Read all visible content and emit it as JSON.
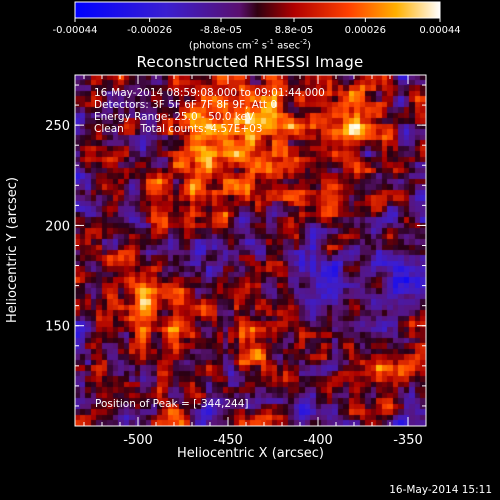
{
  "colorbar": {
    "ticks": [
      "-0.00044",
      "-0.00026",
      "-8.8e-05",
      "8.8e-05",
      "0.00026",
      "0.00044"
    ],
    "tick_values": [
      -0.00044,
      -0.00026,
      -8.8e-05,
      8.8e-05,
      0.00026,
      0.00044
    ],
    "units_prefix": "(photons cm",
    "units_exp1": "-2",
    "units_mid1": " s",
    "units_exp2": "-1",
    "units_mid2": " asec",
    "units_exp3": "-2",
    "units_suffix": ")"
  },
  "header": {
    "title": "Reconstructed RHESSI Image"
  },
  "info": {
    "line1": "16-May-2014 08:59:08.000 to 09:01:44.000",
    "line2": "Detectors: 3F 5F 6F 7F 8F 9F, Att 0",
    "line3": "Energy Range: 25.0 - 50.0 keV",
    "line4": "Clean     Total counts: 4.57E+03",
    "peak": "Position of Peak = [-344,244]"
  },
  "footer": {
    "timestamp": "16-May-2014 15:11"
  },
  "chart_data": {
    "type": "heatmap",
    "title": "Reconstructed RHESSI Image",
    "xlabel": "Heliocentric X (arcsec)",
    "ylabel": "Heliocentric Y (arcsec)",
    "xlim": [
      -535,
      -340
    ],
    "ylim": [
      100,
      275
    ],
    "x_ticks": [
      -500,
      -450,
      -400,
      -350
    ],
    "x_tick_labels": [
      "-500",
      "-450",
      "-400",
      "-350"
    ],
    "y_ticks": [
      150,
      200,
      250
    ],
    "y_tick_labels": [
      "150",
      "200",
      "250"
    ],
    "color_range": [
      -0.00044,
      0.00044
    ],
    "colormap": "blue-purple-red-yellow-white",
    "peak_position": [
      -344,
      244
    ]
  }
}
